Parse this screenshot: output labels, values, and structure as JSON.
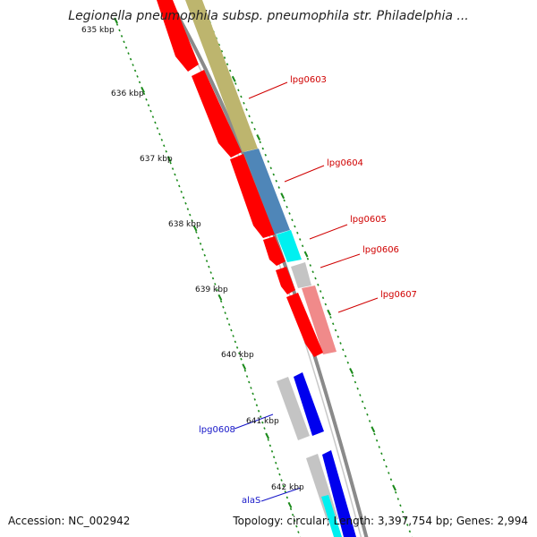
{
  "title": "Legionella pneumophila subsp. pneumophila str. Philadelphia ...",
  "accession": "Accession: NC_002942",
  "summary": "Topology: circular; Length: 3,397,754 bp; Genes: 2,994",
  "ruler_labels": [
    "635 kbp",
    "636 kbp",
    "637 kbp",
    "638 kbp",
    "639 kbp",
    "640 kbp",
    "641 kbp",
    "642 kbp"
  ],
  "genes": [
    {
      "name": "lpg0603",
      "color": "#d00000"
    },
    {
      "name": "lpg0604",
      "color": "#d00000"
    },
    {
      "name": "lpg0605",
      "color": "#d00000"
    },
    {
      "name": "lpg0606",
      "color": "#d00000"
    },
    {
      "name": "lpg0607",
      "color": "#d00000"
    },
    {
      "name": "lpg0608",
      "color": "#1515c8"
    },
    {
      "name": "alaS",
      "color": "#1515c8"
    }
  ],
  "colors": {
    "forward_cds": "#ff0000",
    "reverse_cds": "#0000ee",
    "backbone": "#8c8c8c",
    "ruler_ticks": "#1a8a1a",
    "cog_olive": "#bdb56e",
    "cog_steelblue": "#4f86b8",
    "cog_cyan": "#00f0f0",
    "cog_grey": "#c4c4c4",
    "cog_pink": "#f08a8a"
  }
}
